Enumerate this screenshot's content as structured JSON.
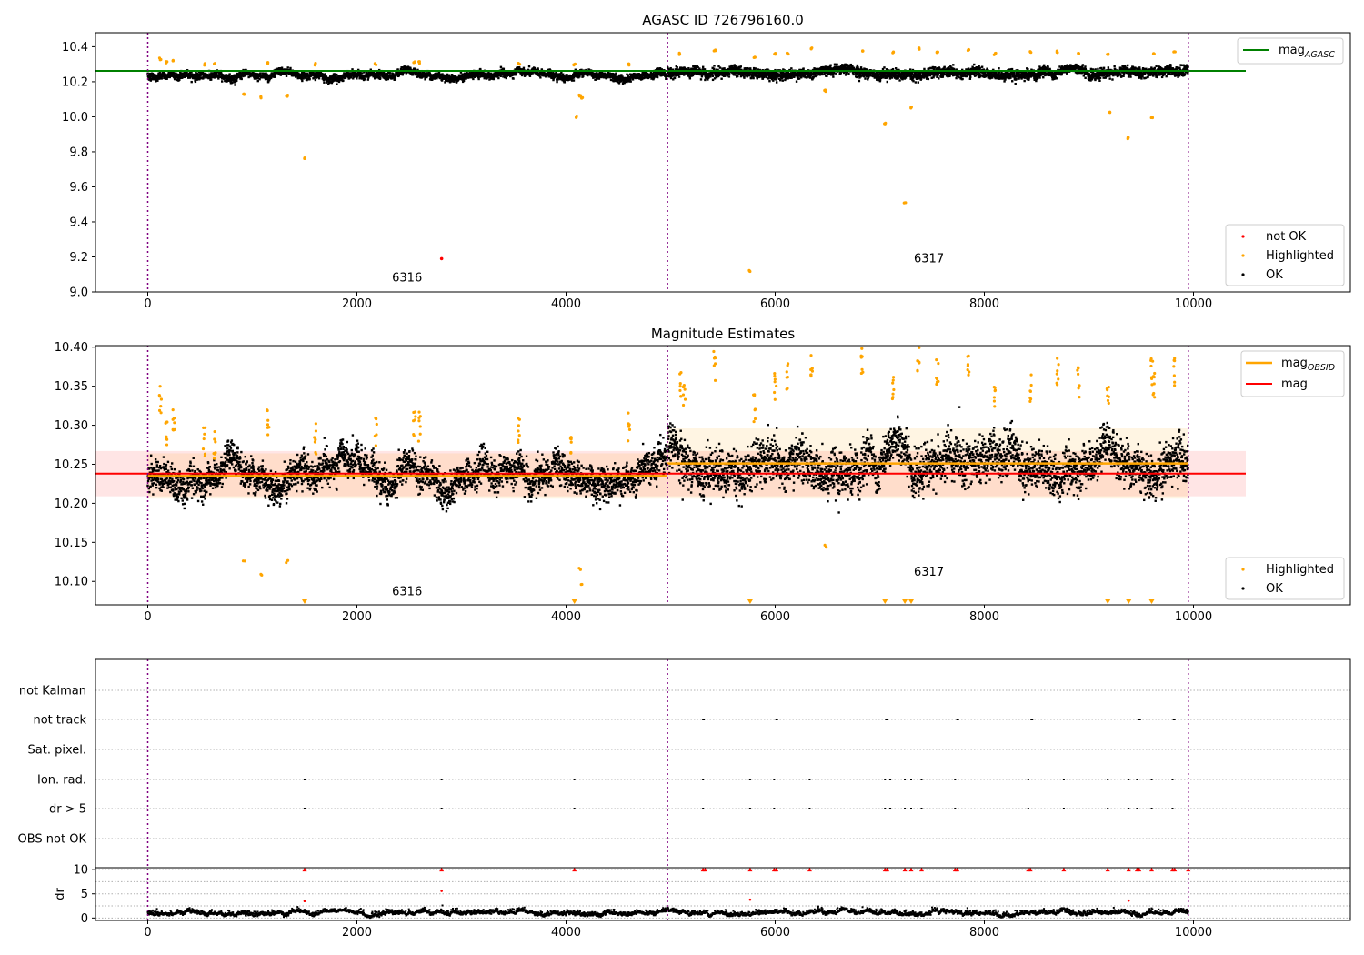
{
  "chart_data": [
    {
      "type": "scatter",
      "title": "AGASC ID 726796160.0",
      "xlabel": "",
      "ylabel": "",
      "xlim": [
        -500,
        11500
      ],
      "ylim": [
        9.0,
        10.48
      ],
      "x_ticks": [
        0,
        2000,
        4000,
        6000,
        8000,
        10000
      ],
      "y_ticks": [
        9.0,
        9.2,
        9.4,
        9.6,
        9.8,
        10.0,
        10.2,
        10.4
      ],
      "grid": false,
      "obs_boundaries": [
        0,
        4970,
        9950
      ],
      "obs_labels": [
        {
          "text": "6316",
          "x": 2480,
          "y": 9.06
        },
        {
          "text": "6317",
          "x": 7470,
          "y": 9.17
        }
      ],
      "ok_band": {
        "segments": [
          {
            "x_start": 0,
            "x_end": 4970,
            "base": 10.235
          },
          {
            "x_start": 4970,
            "x_end": 9950,
            "base": 10.25
          }
        ],
        "spread": 0.03
      },
      "series": [
        {
          "name": "mag_AGASC",
          "style": "line",
          "color": "#008000",
          "x": [
            -500,
            10500
          ],
          "values": [
            10.262,
            10.262
          ]
        },
        {
          "name": "not OK",
          "style": "points",
          "color": "#ff0000",
          "x": [
            2810
          ],
          "values": [
            9.19
          ]
        },
        {
          "name": "Highlighted",
          "style": "points",
          "color": "#ffa500",
          "x": [
            120,
            180,
            250,
            540,
            640,
            920,
            1080,
            1150,
            1330,
            1500,
            1600,
            2180,
            2550,
            2600,
            3550,
            4080,
            4100,
            4130,
            4150,
            4600,
            5090,
            5420,
            5760,
            5800,
            6000,
            6120,
            6350,
            6480,
            6830,
            7050,
            7130,
            7240,
            7300,
            7370,
            7550,
            7850,
            8100,
            8440,
            8700,
            8900,
            9180,
            9200,
            9380,
            9600,
            9620,
            9820
          ],
          "values": [
            10.33,
            10.31,
            10.32,
            10.3,
            10.3,
            10.13,
            10.11,
            10.31,
            10.12,
            9.76,
            10.3,
            10.3,
            10.31,
            10.31,
            10.3,
            10.3,
            10.0,
            10.12,
            10.11,
            10.3,
            10.36,
            10.38,
            9.12,
            10.34,
            10.36,
            10.36,
            10.39,
            10.15,
            10.38,
            9.96,
            10.37,
            9.51,
            10.05,
            10.39,
            10.37,
            10.38,
            10.36,
            10.37,
            10.37,
            10.36,
            10.36,
            10.03,
            9.88,
            10.0,
            10.36,
            10.37
          ]
        },
        {
          "name": "OK",
          "style": "points",
          "color": "#000000",
          "x_range": [
            0,
            9950
          ],
          "trend": "10.235 before x=4970, 10.25 after"
        }
      ],
      "legend": {
        "position": "bottom-right",
        "entries": [
          "not OK",
          "Highlighted",
          "OK"
        ]
      },
      "legend_line": {
        "position": "top-right",
        "main": "mag",
        "sub": "AGASC"
      }
    },
    {
      "type": "scatter",
      "title": "Magnitude Estimates",
      "xlabel": "",
      "ylabel": "",
      "xlim": [
        -500,
        11500
      ],
      "ylim": [
        10.07,
        10.402
      ],
      "x_ticks": [
        0,
        2000,
        4000,
        6000,
        8000,
        10000
      ],
      "y_ticks": [
        10.1,
        10.15,
        10.2,
        10.25,
        10.3,
        10.35,
        10.4
      ],
      "grid": false,
      "obs_boundaries": [
        0,
        4970,
        9950
      ],
      "obs_labels": [
        {
          "text": "6316",
          "x": 2480,
          "y": 10.082
        },
        {
          "text": "6317",
          "x": 7470,
          "y": 10.107
        }
      ],
      "bands": [
        {
          "name": "mag",
          "color": "#ff0000",
          "x_start": -500,
          "x_end": 10500,
          "y_low": 10.209,
          "y_high": 10.267
        },
        {
          "name": "mag_OBSID 6316",
          "color": "#ffa500",
          "x_start": 0,
          "x_end": 4970,
          "y_low": 10.206,
          "y_high": 10.264
        },
        {
          "name": "mag_OBSID 6317",
          "color": "#ffa500",
          "x_start": 4970,
          "x_end": 9950,
          "y_low": 10.206,
          "y_high": 10.296
        }
      ],
      "series": [
        {
          "name": "mag_OBSID",
          "style": "line",
          "color": "#ffa500",
          "segments": [
            {
              "x_start": 0,
              "x_end": 4970,
              "value": 10.235
            },
            {
              "x_start": 4970,
              "x_end": 9950,
              "value": 10.251
            }
          ]
        },
        {
          "name": "mag",
          "style": "line",
          "color": "#ff0000",
          "x": [
            -500,
            10500
          ],
          "values": [
            10.238,
            10.238
          ]
        },
        {
          "name": "Highlighted",
          "style": "points",
          "color": "#ffa500",
          "x": [
            120,
            180,
            250,
            540,
            640,
            920,
            1080,
            1150,
            1330,
            1600,
            2180,
            2550,
            2600,
            3550,
            4050,
            4130,
            4150,
            4600,
            5090,
            5130,
            5420,
            5800,
            6000,
            6120,
            6350,
            6480,
            6830,
            7130,
            7370,
            7550,
            7850,
            8100,
            8440,
            8700,
            8900,
            9180,
            9600,
            9620,
            9820
          ],
          "values": [
            10.355,
            10.31,
            10.325,
            10.298,
            10.297,
            10.129,
            10.112,
            10.325,
            10.127,
            10.303,
            10.31,
            10.317,
            10.318,
            10.315,
            10.298,
            10.117,
            10.1,
            10.317,
            10.37,
            10.36,
            10.395,
            10.34,
            10.37,
            10.385,
            10.4,
            10.147,
            10.4,
            10.37,
            10.4,
            10.385,
            10.4,
            10.35,
            10.37,
            10.39,
            10.375,
            10.36,
            10.39,
            10.37,
            10.39
          ]
        },
        {
          "name": "Highlighted (off scale, below)",
          "style": "markers",
          "color": "#ffa500",
          "x": [
            1500,
            4080,
            5760,
            7050,
            7240,
            7300,
            9180,
            9380,
            9600
          ]
        },
        {
          "name": "OK",
          "style": "points",
          "color": "#000000",
          "x_range": [
            0,
            9950
          ],
          "trend": "10.235 before x=4970, 10.25 after"
        }
      ],
      "legend": {
        "position": "bottom-right",
        "entries": [
          "Highlighted",
          "OK"
        ]
      },
      "legend_lines": {
        "position": "top-right",
        "entries": [
          {
            "main": "mag",
            "sub": "OBSID",
            "color": "#ffa500"
          },
          {
            "main": "mag",
            "sub": "",
            "color": "#ff0000"
          }
        ]
      }
    },
    {
      "type": "scatter",
      "title": "",
      "xlabel": "",
      "ylabel": "",
      "xlim": [
        -500,
        11500
      ],
      "x_ticks": [
        0,
        2000,
        4000,
        6000,
        8000,
        10000
      ],
      "obs_boundaries": [
        0,
        4970,
        9950
      ],
      "flag_rows": [
        "not Kalman",
        "not track",
        "Sat. pixel.",
        "Ion. rad.",
        "dr > 5",
        "OBS not OK"
      ],
      "flags": {
        "not track": [
          5310,
          6010,
          7060,
          7740,
          8450,
          9480,
          9810
        ],
        "Ion. rad.": [
          1500,
          2810,
          4080,
          5310,
          5760,
          5990,
          6330,
          7050,
          7100,
          7240,
          7300,
          7400,
          7720,
          8420,
          8760,
          9180,
          9380,
          9460,
          9600,
          9800
        ],
        "dr > 5": [
          1500,
          2810,
          4080,
          5310,
          5760,
          5990,
          6330,
          7050,
          7100,
          7240,
          7300,
          7400,
          7720,
          8420,
          8760,
          9180,
          9380,
          9460,
          9600,
          9800
        ],
        "not Kalman": [],
        "Sat. pixel.": [],
        "OBS not OK": []
      },
      "grid": true
    },
    {
      "type": "scatter",
      "title": "",
      "xlabel": "",
      "ylabel": "dr",
      "xlim": [
        -500,
        11500
      ],
      "ylim": [
        -0.5,
        10.4
      ],
      "x_ticks": [
        0,
        2000,
        4000,
        6000,
        8000,
        10000
      ],
      "y_ticks": [
        0,
        5,
        10
      ],
      "grid": true,
      "obs_boundaries": [
        0,
        4970,
        9950
      ],
      "series": [
        {
          "name": "dr > 10 (clipped)",
          "style": "markers",
          "color": "#ff0000",
          "x": [
            1500,
            2810,
            4080,
            5310,
            5330,
            5760,
            5990,
            6010,
            6330,
            7050,
            7070,
            7240,
            7300,
            7400,
            7720,
            7740,
            8420,
            8440,
            8760,
            9180,
            9380,
            9460,
            9480,
            9600,
            9800,
            9820,
            9950
          ]
        },
        {
          "name": "dr > 5",
          "style": "points",
          "color": "#ff0000",
          "x": [
            1500,
            2810,
            5760,
            9380
          ],
          "values": [
            3.5,
            5.6,
            3.8,
            3.6
          ]
        },
        {
          "name": "dr",
          "style": "points",
          "color": "#000000",
          "x_range": [
            0,
            9950
          ],
          "typical": [
            0.3,
            2.5
          ]
        }
      ]
    }
  ]
}
